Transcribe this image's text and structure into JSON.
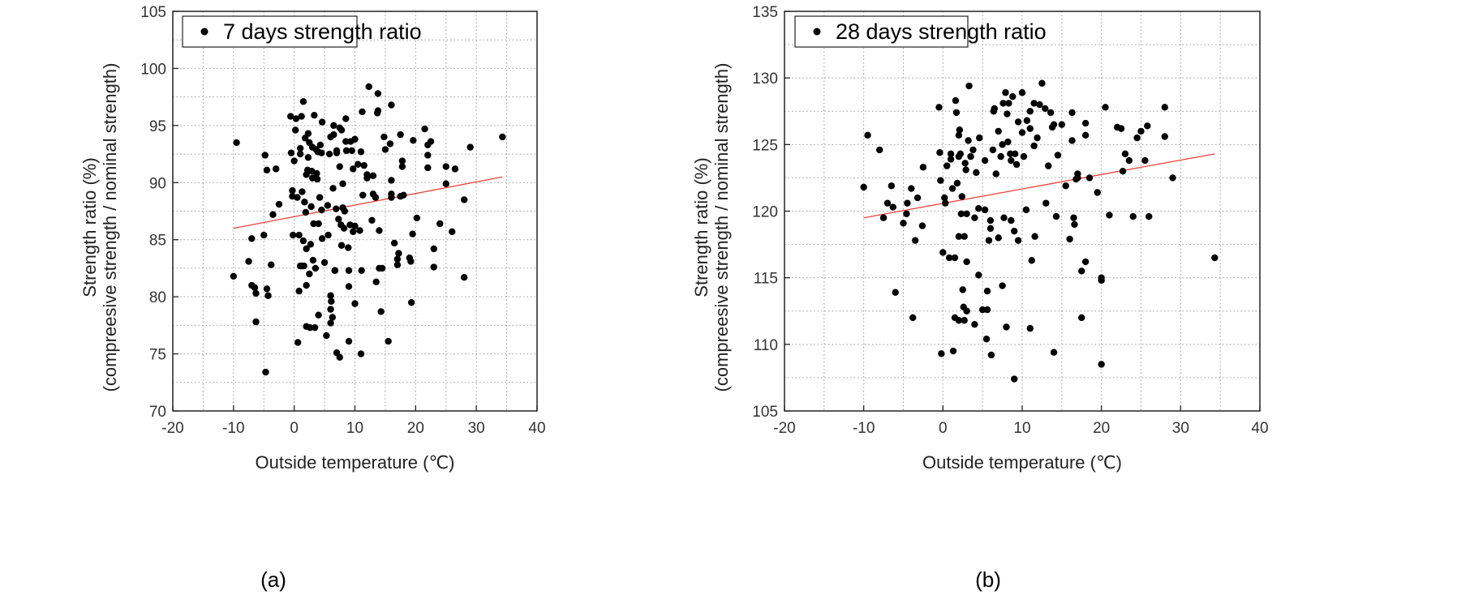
{
  "chart_data": [
    {
      "type": "scatter",
      "caption": "(a)",
      "legend": "7 days strength ratio",
      "xlabel": "Outside temperature (℃)",
      "ylabel_line1": "Strength ratio (%)",
      "ylabel_line2": "(compreesive strength / nominal strength)",
      "xlim": [
        -20,
        40
      ],
      "ylim": [
        70,
        105
      ],
      "xticks": [
        -20,
        -10,
        0,
        10,
        20,
        30,
        40
      ],
      "yticks": [
        70,
        75,
        80,
        85,
        90,
        95,
        100,
        105
      ],
      "grid": true,
      "legend_position": "top-left",
      "trendline": {
        "x": [
          -10,
          34.3
        ],
        "y": [
          86.0,
          90.5
        ],
        "color": "#e8413c"
      },
      "point_color": "#000000",
      "points": [
        [
          -10,
          81.8
        ],
        [
          -9.5,
          93.5
        ],
        [
          -7.5,
          83.1
        ],
        [
          -7,
          81
        ],
        [
          -7,
          85.1
        ],
        [
          -6.5,
          80.8
        ],
        [
          -6.3,
          80.3
        ],
        [
          -6.3,
          77.8
        ],
        [
          -5,
          85.4
        ],
        [
          -4.8,
          92.4
        ],
        [
          -4.7,
          73.4
        ],
        [
          -4.5,
          91.1
        ],
        [
          -4.5,
          80.7
        ],
        [
          -4.3,
          80.1
        ],
        [
          -3.8,
          82.8
        ],
        [
          -3.5,
          87.2
        ],
        [
          -3,
          91.2
        ],
        [
          -2.5,
          88.1
        ],
        [
          -0.6,
          95.8
        ],
        [
          -0.5,
          92.6
        ],
        [
          -0.3,
          89.3
        ],
        [
          -0.3,
          88.8
        ],
        [
          -0.2,
          85.4
        ],
        [
          0,
          91.9
        ],
        [
          0.2,
          94.6
        ],
        [
          0.3,
          95.6
        ],
        [
          0.5,
          88.7
        ],
        [
          0.6,
          76
        ],
        [
          0.8,
          85.4
        ],
        [
          0.8,
          80.5
        ],
        [
          1,
          82.7
        ],
        [
          1,
          92.5
        ],
        [
          1,
          93
        ],
        [
          1.2,
          95.8
        ],
        [
          1.3,
          89.2
        ],
        [
          1.3,
          82.7
        ],
        [
          1.5,
          97.1
        ],
        [
          1.5,
          84.9
        ],
        [
          1.6,
          82.7
        ],
        [
          1.7,
          88.3
        ],
        [
          1.8,
          93.9
        ],
        [
          1.9,
          87.4
        ],
        [
          2,
          81
        ],
        [
          2,
          77.4
        ],
        [
          2,
          84.2
        ],
        [
          2,
          90.7
        ],
        [
          2.2,
          91.1
        ],
        [
          2.3,
          92.2
        ],
        [
          2.3,
          94.3
        ],
        [
          2.5,
          93.5
        ],
        [
          2.5,
          82
        ],
        [
          2.6,
          77.3
        ],
        [
          2.7,
          84.6
        ],
        [
          2.8,
          87.9
        ],
        [
          2.9,
          91
        ],
        [
          3,
          93.1
        ],
        [
          3,
          90.4
        ],
        [
          3.1,
          83.2
        ],
        [
          3.2,
          86.4
        ],
        [
          3.3,
          95.9
        ],
        [
          3.4,
          77.3
        ],
        [
          3.5,
          82.5
        ],
        [
          3.6,
          92.9
        ],
        [
          3.7,
          90.8
        ],
        [
          3.8,
          90.3
        ],
        [
          3.9,
          92.7
        ],
        [
          4,
          86.4
        ],
        [
          4,
          78.4
        ],
        [
          4.2,
          88.7
        ],
        [
          4.3,
          93.3
        ],
        [
          4.5,
          92.6
        ],
        [
          4.5,
          87.6
        ],
        [
          4.6,
          85.1
        ],
        [
          4.6,
          95.3
        ],
        [
          5,
          83
        ],
        [
          5.3,
          76.6
        ],
        [
          5.5,
          88
        ],
        [
          5.6,
          85.4
        ],
        [
          5.8,
          92.5
        ],
        [
          6,
          94
        ],
        [
          6,
          78.9
        ],
        [
          6,
          80.1
        ],
        [
          6,
          77.7
        ],
        [
          6.1,
          79.6
        ],
        [
          6.3,
          78.2
        ],
        [
          6.4,
          89.5
        ],
        [
          6.5,
          95
        ],
        [
          6.5,
          94.2
        ],
        [
          6.7,
          82.3
        ],
        [
          6.7,
          82.3
        ],
        [
          6.9,
          87.7
        ],
        [
          7,
          92.6
        ],
        [
          7,
          92.8
        ],
        [
          7,
          75.1
        ],
        [
          7.3,
          86.8
        ],
        [
          7.5,
          91.4
        ],
        [
          7.5,
          94.8
        ],
        [
          7.5,
          74.7
        ],
        [
          7.7,
          86.3
        ],
        [
          7.8,
          94.6
        ],
        [
          7.8,
          84.5
        ],
        [
          8,
          87.8
        ],
        [
          8,
          89.9
        ],
        [
          8.2,
          86
        ],
        [
          8.3,
          87.5
        ],
        [
          8.5,
          93.6
        ],
        [
          8.5,
          95.6
        ],
        [
          8.6,
          92.8
        ],
        [
          8.9,
          84.3
        ],
        [
          9,
          80.9
        ],
        [
          9,
          82.3
        ],
        [
          9,
          76.1
        ],
        [
          9.2,
          86.3
        ],
        [
          9.3,
          93.6
        ],
        [
          9.5,
          92.8
        ],
        [
          9.7,
          85.7
        ],
        [
          9.7,
          91.2
        ],
        [
          10,
          93.8
        ],
        [
          10,
          79.4
        ],
        [
          10,
          86.2
        ],
        [
          10.5,
          91.6
        ],
        [
          10.8,
          85.8
        ],
        [
          11,
          92.7
        ],
        [
          11,
          75
        ],
        [
          11.1,
          82.3
        ],
        [
          11.2,
          96.2
        ],
        [
          11.3,
          88.9
        ],
        [
          11.5,
          91.5
        ],
        [
          12,
          90.7
        ],
        [
          12,
          90.4
        ],
        [
          12.3,
          98.4
        ],
        [
          12.8,
          86.7
        ],
        [
          13,
          90.6
        ],
        [
          13,
          89
        ],
        [
          13.4,
          88.7
        ],
        [
          13.5,
          81.3
        ],
        [
          13.7,
          96.1
        ],
        [
          13.8,
          97.8
        ],
        [
          13.8,
          96.3
        ],
        [
          14,
          82.5
        ],
        [
          14,
          85.8
        ],
        [
          14.3,
          78.7
        ],
        [
          14.5,
          82.5
        ],
        [
          14.8,
          94
        ],
        [
          15,
          92.9
        ],
        [
          15.5,
          76.1
        ],
        [
          15.8,
          93.4
        ],
        [
          16,
          96.8
        ],
        [
          16,
          89
        ],
        [
          16,
          90.2
        ],
        [
          16,
          88.7
        ],
        [
          16.5,
          84.7
        ],
        [
          17,
          82.8
        ],
        [
          17,
          83.3
        ],
        [
          17.2,
          83.8
        ],
        [
          17.5,
          88.8
        ],
        [
          17.5,
          94.2
        ],
        [
          17.8,
          91.9
        ],
        [
          17.8,
          91.4
        ],
        [
          18,
          88.9
        ],
        [
          19,
          83.4
        ],
        [
          19.2,
          83.1
        ],
        [
          19.3,
          79.5
        ],
        [
          19.5,
          85.5
        ],
        [
          19.6,
          93.7
        ],
        [
          20.2,
          86.9
        ],
        [
          21.5,
          94.7
        ],
        [
          22,
          93.3
        ],
        [
          22,
          91.3
        ],
        [
          22,
          92.4
        ],
        [
          22.5,
          93.6
        ],
        [
          23,
          84.2
        ],
        [
          23,
          82.6
        ],
        [
          24,
          86.4
        ],
        [
          25,
          91.4
        ],
        [
          25,
          89.9
        ],
        [
          26,
          85.7
        ],
        [
          26.5,
          91.2
        ],
        [
          28,
          88.5
        ],
        [
          28,
          81.7
        ],
        [
          29,
          93.1
        ],
        [
          34.3,
          94
        ]
      ]
    },
    {
      "type": "scatter",
      "caption": "(b)",
      "legend": "28 days strength ratio",
      "xlabel": "Outside temperature (℃)",
      "ylabel_line1": "Strength ratio (%)",
      "ylabel_line2": "(compreesive strength / nominal strength)",
      "xlim": [
        -20,
        40
      ],
      "ylim": [
        105,
        135
      ],
      "xticks": [
        -20,
        -10,
        0,
        10,
        20,
        30,
        40
      ],
      "yticks": [
        105,
        110,
        115,
        120,
        125,
        130,
        135
      ],
      "grid": true,
      "legend_position": "top-left",
      "trendline": {
        "x": [
          -10,
          34.3
        ],
        "y": [
          119.5,
          124.3
        ],
        "color": "#e8413c"
      },
      "point_color": "#000000",
      "points": [
        [
          -10,
          121.8
        ],
        [
          -9.5,
          125.7
        ],
        [
          -8,
          124.6
        ],
        [
          -7.5,
          119.5
        ],
        [
          -7,
          120.6
        ],
        [
          -6.5,
          121.9
        ],
        [
          -6.3,
          120.3
        ],
        [
          -6,
          113.9
        ],
        [
          -5,
          119.1
        ],
        [
          -4.6,
          119.8
        ],
        [
          -4.5,
          120.6
        ],
        [
          -4,
          121.7
        ],
        [
          -3.8,
          112
        ],
        [
          -3.5,
          117.8
        ],
        [
          -3.2,
          121
        ],
        [
          -2.6,
          118.9
        ],
        [
          -2.5,
          123.3
        ],
        [
          -0.5,
          127.8
        ],
        [
          -0.4,
          124.4
        ],
        [
          -0.3,
          122.3
        ],
        [
          -0.2,
          109.3
        ],
        [
          0,
          116.9
        ],
        [
          0.2,
          121
        ],
        [
          0.3,
          120.6
        ],
        [
          0.5,
          123.4
        ],
        [
          0.8,
          116.5
        ],
        [
          1,
          123.9
        ],
        [
          1,
          124.3
        ],
        [
          1.2,
          121.7
        ],
        [
          1.3,
          109.5
        ],
        [
          1.5,
          112
        ],
        [
          1.5,
          116.5
        ],
        [
          1.6,
          128.3
        ],
        [
          1.7,
          127.4
        ],
        [
          1.8,
          122.1
        ],
        [
          2,
          124.1
        ],
        [
          2,
          118.1
        ],
        [
          2,
          111.8
        ],
        [
          2,
          125.7
        ],
        [
          2.1,
          126.1
        ],
        [
          2.2,
          124.3
        ],
        [
          2.3,
          119.8
        ],
        [
          2.4,
          121.1
        ],
        [
          2.5,
          114.1
        ],
        [
          2.6,
          112.8
        ],
        [
          2.7,
          118.1
        ],
        [
          2.7,
          111.8
        ],
        [
          2.8,
          123.6
        ],
        [
          2.9,
          123.1
        ],
        [
          3,
          119.8
        ],
        [
          3,
          116.2
        ],
        [
          3,
          112.5
        ],
        [
          3.2,
          125.3
        ],
        [
          3.3,
          129.4
        ],
        [
          3.5,
          124.1
        ],
        [
          3.8,
          124.6
        ],
        [
          4,
          119.5
        ],
        [
          4,
          111.5
        ],
        [
          4.2,
          122.9
        ],
        [
          4.5,
          120.2
        ],
        [
          4.5,
          115.2
        ],
        [
          4.6,
          125.5
        ],
        [
          5,
          112.6
        ],
        [
          5.3,
          120.1
        ],
        [
          5.3,
          123.8
        ],
        [
          5.5,
          110.4
        ],
        [
          5.6,
          112.6
        ],
        [
          5.6,
          114
        ],
        [
          5.8,
          117.8
        ],
        [
          6,
          119.3
        ],
        [
          6,
          118.7
        ],
        [
          6.1,
          109.2
        ],
        [
          6.3,
          124.6
        ],
        [
          6.4,
          127.5
        ],
        [
          6.5,
          127.7
        ],
        [
          6.7,
          122.8
        ],
        [
          7,
          126
        ],
        [
          7,
          118
        ],
        [
          7.3,
          124.1
        ],
        [
          7.5,
          114.4
        ],
        [
          7.5,
          125
        ],
        [
          7.6,
          128.1
        ],
        [
          7.7,
          119.5
        ],
        [
          7.9,
          128.9
        ],
        [
          8,
          111.3
        ],
        [
          8.1,
          127.3
        ],
        [
          8.2,
          125.2
        ],
        [
          8.3,
          128.1
        ],
        [
          8.5,
          124.3
        ],
        [
          8.6,
          123.8
        ],
        [
          8.6,
          119.3
        ],
        [
          8.8,
          128.6
        ],
        [
          9,
          107.4
        ],
        [
          9,
          118.5
        ],
        [
          9.1,
          124.3
        ],
        [
          9.3,
          123.5
        ],
        [
          9.5,
          126.7
        ],
        [
          9.5,
          117.8
        ],
        [
          10,
          128.9
        ],
        [
          10,
          125.9
        ],
        [
          10.2,
          124.1
        ],
        [
          10.5,
          120.1
        ],
        [
          10.6,
          126.8
        ],
        [
          11,
          127.5
        ],
        [
          11,
          126.2
        ],
        [
          11,
          111.2
        ],
        [
          11.2,
          116.3
        ],
        [
          11.5,
          128.1
        ],
        [
          11.5,
          124.9
        ],
        [
          11.6,
          118.1
        ],
        [
          11.9,
          125.5
        ],
        [
          12.2,
          128
        ],
        [
          12.5,
          129.6
        ],
        [
          12.9,
          127.7
        ],
        [
          13,
          120.6
        ],
        [
          13.3,
          123.4
        ],
        [
          13.6,
          127.4
        ],
        [
          13.8,
          126.3
        ],
        [
          14,
          126.5
        ],
        [
          14,
          109.4
        ],
        [
          14.3,
          119.6
        ],
        [
          14.5,
          124.2
        ],
        [
          15,
          126.5
        ],
        [
          15.5,
          121.9
        ],
        [
          16,
          117.9
        ],
        [
          16.3,
          127.4
        ],
        [
          16.3,
          125.3
        ],
        [
          16.5,
          119.5
        ],
        [
          16.6,
          119
        ],
        [
          16.8,
          122.4
        ],
        [
          17,
          122.8
        ],
        [
          17,
          122.5
        ],
        [
          17.5,
          115.5
        ],
        [
          17.5,
          112
        ],
        [
          18,
          126.6
        ],
        [
          18,
          116.2
        ],
        [
          18,
          125.7
        ],
        [
          18.5,
          122.5
        ],
        [
          19.5,
          121.4
        ],
        [
          20,
          115
        ],
        [
          20,
          114.8
        ],
        [
          20,
          108.5
        ],
        [
          20.5,
          127.8
        ],
        [
          21,
          119.7
        ],
        [
          22,
          126.3
        ],
        [
          22.5,
          126.2
        ],
        [
          22.7,
          123
        ],
        [
          23,
          124.3
        ],
        [
          23.5,
          123.8
        ],
        [
          24,
          119.6
        ],
        [
          24.5,
          125.5
        ],
        [
          25,
          126
        ],
        [
          25.5,
          123.8
        ],
        [
          25.8,
          126.4
        ],
        [
          26,
          119.6
        ],
        [
          28,
          127.8
        ],
        [
          28,
          125.6
        ],
        [
          29,
          122.5
        ],
        [
          34.3,
          116.5
        ]
      ]
    }
  ]
}
